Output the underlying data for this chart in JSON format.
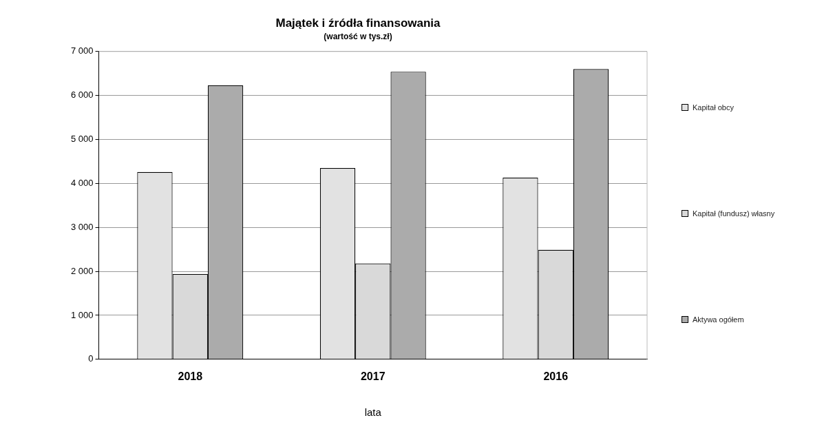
{
  "chart_data": {
    "type": "bar",
    "title": "Majątek i źródła finansowania",
    "subtitle": "(wartość w tys.zł)",
    "xlabel": "lata",
    "categories": [
      "2018",
      "2017",
      "2016"
    ],
    "series": [
      {
        "name": "Kapitał obcy",
        "color": "#e2e2e2",
        "values": [
          4260,
          4350,
          4130
        ]
      },
      {
        "name": "Kapitał (fundusz) własny",
        "color": "#d9d9d9",
        "values": [
          1940,
          2180,
          2490
        ]
      },
      {
        "name": "Aktywa ogółem",
        "color": "#ababab",
        "values": [
          6230,
          6540,
          6600
        ]
      }
    ],
    "ylim": [
      0,
      7000
    ],
    "yticks": [
      {
        "value": 0,
        "label": "0"
      },
      {
        "value": 1000,
        "label": "1 000"
      },
      {
        "value": 2000,
        "label": "2 000"
      },
      {
        "value": 3000,
        "label": "3 000"
      },
      {
        "value": 4000,
        "label": "4 000"
      },
      {
        "value": 5000,
        "label": "5 000"
      },
      {
        "value": 6000,
        "label": "6 000"
      },
      {
        "value": 7000,
        "label": "7 000"
      }
    ],
    "grid": "y",
    "legend": "right"
  }
}
